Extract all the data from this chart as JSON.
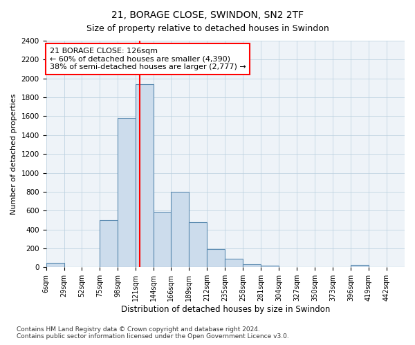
{
  "title": "21, BORAGE CLOSE, SWINDON, SN2 2TF",
  "subtitle": "Size of property relative to detached houses in Swindon",
  "xlabel": "Distribution of detached houses by size in Swindon",
  "ylabel": "Number of detached properties",
  "footnote1": "Contains HM Land Registry data © Crown copyright and database right 2024.",
  "footnote2": "Contains public sector information licensed under the Open Government Licence v3.0.",
  "annotation_line0": "21 BORAGE CLOSE: 126sqm",
  "annotation_line1": "← 60% of detached houses are smaller (4,390)",
  "annotation_line2": "38% of semi-detached houses are larger (2,777) →",
  "bar_color": "#ccdcec",
  "bar_edge_color": "#5a8ab0",
  "red_line_x": 126,
  "ylim": [
    0,
    2400
  ],
  "yticks": [
    0,
    200,
    400,
    600,
    800,
    1000,
    1200,
    1400,
    1600,
    1800,
    2000,
    2200,
    2400
  ],
  "bins": [
    6,
    29,
    52,
    75,
    98,
    121,
    144,
    166,
    189,
    212,
    235,
    258,
    281,
    304,
    327,
    350,
    373,
    396,
    419,
    442,
    465
  ],
  "counts": [
    50,
    0,
    0,
    500,
    1580,
    1940,
    590,
    800,
    480,
    195,
    90,
    30,
    20,
    5,
    0,
    0,
    0,
    25,
    0,
    0
  ],
  "title_fontsize": 10,
  "subtitle_fontsize": 9,
  "xlabel_fontsize": 8.5,
  "ylabel_fontsize": 8,
  "xtick_fontsize": 7,
  "ytick_fontsize": 7.5,
  "footnote_fontsize": 6.5
}
